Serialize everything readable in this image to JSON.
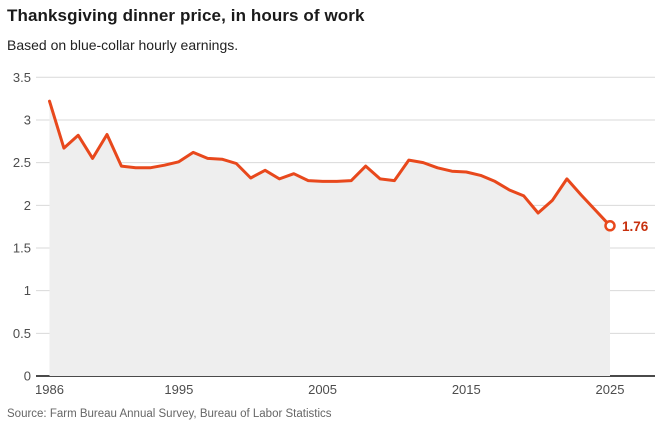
{
  "header": {
    "title": "Thanksgiving dinner price, in hours of work",
    "subtitle": "Based on blue-collar hourly earnings."
  },
  "footer": {
    "source": "Source: Farm Bureau Annual Survey, Bureau of Labor Statistics"
  },
  "chart_data": {
    "type": "line",
    "title": "Thanksgiving dinner price, in hours of work",
    "subtitle": "Based on blue-collar hourly earnings.",
    "x": [
      1986,
      1987,
      1988,
      1989,
      1990,
      1991,
      1992,
      1993,
      1994,
      1995,
      1996,
      1997,
      1998,
      1999,
      2000,
      2001,
      2002,
      2003,
      2004,
      2005,
      2006,
      2007,
      2008,
      2009,
      2010,
      2011,
      2012,
      2013,
      2014,
      2015,
      2016,
      2017,
      2018,
      2019,
      2020,
      2021,
      2022,
      2023,
      2024,
      2025
    ],
    "values": [
      3.22,
      2.67,
      2.82,
      2.55,
      2.83,
      2.46,
      2.44,
      2.44,
      2.47,
      2.51,
      2.62,
      2.55,
      2.54,
      2.49,
      2.32,
      2.41,
      2.31,
      2.37,
      2.29,
      2.28,
      2.28,
      2.29,
      2.46,
      2.31,
      2.29,
      2.53,
      2.5,
      2.44,
      2.4,
      2.39,
      2.35,
      2.28,
      2.18,
      2.11,
      1.91,
      2.06,
      2.31,
      2.12,
      1.94,
      1.76
    ],
    "end_label": "1.76",
    "x_ticks": [
      1986,
      1995,
      2005,
      2015,
      2025
    ],
    "y_ticks": [
      3.5,
      3,
      2.5,
      2,
      1.5,
      1,
      0.5,
      0
    ],
    "xlim": [
      1986,
      2025
    ],
    "ylim": [
      0,
      3.5
    ],
    "grid": "horizontal",
    "legend": "none",
    "xlabel": "",
    "ylabel": "",
    "colors": {
      "line": "#e8481c",
      "area": "#eeeeee",
      "end_label": "#c7300e",
      "grid": "#d9d9d9",
      "baseline": "#4a4a4a",
      "axis_text": "#4d4d4d"
    }
  }
}
